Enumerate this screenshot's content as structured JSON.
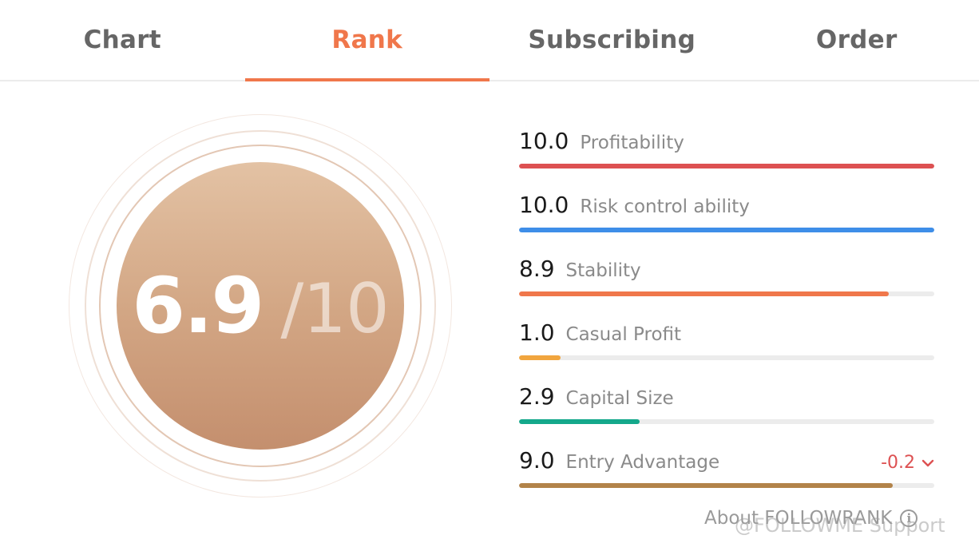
{
  "tabs": [
    {
      "label": "Chart",
      "active": false
    },
    {
      "label": "Rank",
      "active": true
    },
    {
      "label": "Subscribing",
      "active": false
    },
    {
      "label": "Order",
      "active": false
    }
  ],
  "colors": {
    "accent": "#f0774b"
  },
  "score": {
    "value": "6.9",
    "max": "/10"
  },
  "metrics": [
    {
      "value": "10.0",
      "label": "Profitability",
      "fraction": 1.0,
      "color": "#dd5152"
    },
    {
      "value": "10.0",
      "label": "Risk control ability",
      "fraction": 1.0,
      "color": "#3e8ee8"
    },
    {
      "value": "8.9",
      "label": "Stability",
      "fraction": 0.89,
      "color": "#f0774b"
    },
    {
      "value": "1.0",
      "label": "Casual Profit",
      "fraction": 0.1,
      "color": "#f1a53e"
    },
    {
      "value": "2.9",
      "label": "Capital Size",
      "fraction": 0.29,
      "color": "#14a88b"
    },
    {
      "value": "9.0",
      "label": "Entry Advantage",
      "fraction": 0.9,
      "color": "#b28349",
      "change": "-0.2",
      "change_color": "#dd5152"
    }
  ],
  "about": {
    "label": "About FOLLOWRANK"
  },
  "watermark": {
    "text": "@FOLLOWME Support"
  }
}
